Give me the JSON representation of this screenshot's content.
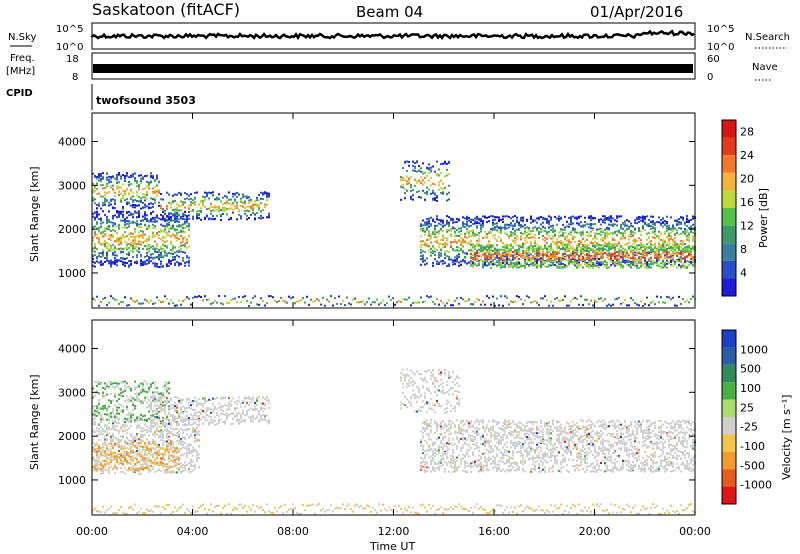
{
  "header": {
    "station": "Saskatoon (fitACF)",
    "beam": "Beam 04",
    "date": "01/Apr/2016"
  },
  "panels": {
    "nsky_label": "N.Sky",
    "nsky_ticks": [
      "10^5",
      "10^0"
    ],
    "nsearch_label": "N.Search",
    "freq_label_1": "Freq.",
    "freq_label_2": "[MHz]",
    "freq_ticks": [
      "18",
      "8"
    ],
    "nave_label": "Nave",
    "nave_ticks": [
      "60",
      "0"
    ],
    "cpid_label": "CPID",
    "cpid_value": "twofsound 3503"
  },
  "colors": {
    "power_scale": [
      "#1b1bd8",
      "#2a4ec8",
      "#3a7fa0",
      "#3f9a6a",
      "#55c04a",
      "#bcd83a",
      "#f6b23a",
      "#f07a2c",
      "#e33a1e",
      "#d81414"
    ],
    "velocity_scale": [
      "#1c3fc8",
      "#2a5ca8",
      "#2f8a5c",
      "#48b042",
      "#a9dc6e",
      "#cfcfcf",
      "#f3c44a",
      "#f39a2c",
      "#ea5a1e",
      "#e01515"
    ]
  },
  "chart_data": [
    {
      "type": "heatmap",
      "title": "Power",
      "ylabel": "Slant Range [km]",
      "xlabel": "Time UT",
      "x_ticks": [
        "00:00",
        "04:00",
        "08:00",
        "12:00",
        "16:00",
        "20:00",
        "00:00"
      ],
      "y_ticks": [
        1000,
        2000,
        3000,
        4000
      ],
      "ylim": [
        200,
        4650
      ],
      "colorbar_label": "Power [dB]",
      "colorbar_ticks": [
        4,
        8,
        12,
        16,
        20,
        24,
        28
      ]
    },
    {
      "type": "heatmap",
      "title": "Velocity",
      "ylabel": "Slant Range [km]",
      "xlabel": "Time UT",
      "x_ticks": [
        "00:00",
        "04:00",
        "08:00",
        "12:00",
        "16:00",
        "20:00",
        "00:00"
      ],
      "y_ticks": [
        1000,
        2000,
        3000,
        4000
      ],
      "ylim": [
        200,
        4650
      ],
      "colorbar_label": "Velocity [m s⁻¹]",
      "colorbar_ticks": [
        1000,
        500,
        100,
        25,
        -25,
        -100,
        -500,
        -1000
      ]
    }
  ]
}
